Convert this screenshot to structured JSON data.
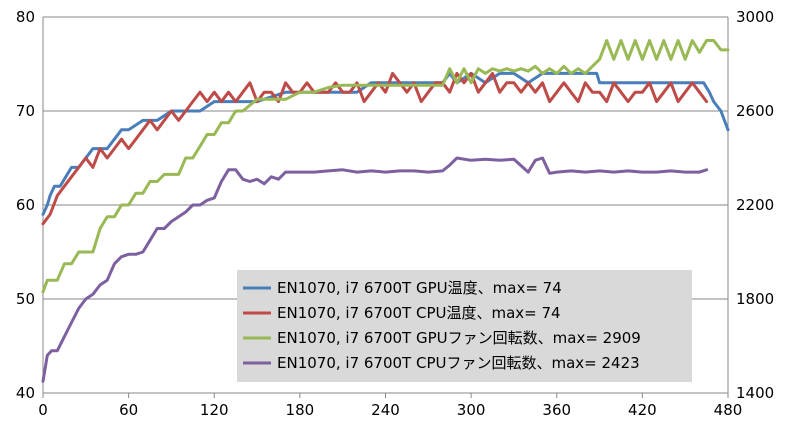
{
  "chart_data": {
    "type": "line",
    "xlim": [
      0,
      480
    ],
    "ylim": [
      40,
      80
    ],
    "y2lim": [
      1400,
      3000
    ],
    "x_ticks": [
      "0",
      "60",
      "120",
      "180",
      "240",
      "300",
      "360",
      "420",
      "480"
    ],
    "y_ticks": [
      "40",
      "50",
      "60",
      "70",
      "80"
    ],
    "y2_ticks": [
      "1400",
      "1800",
      "2200",
      "2600",
      "3000"
    ],
    "grid": true,
    "legend_position": "bottom-center",
    "series": [
      {
        "name": "EN1070, i7 6700T GPU温度、max= 74",
        "color": "#4a7ebb",
        "axis": "left",
        "x": [
          0,
          3,
          5,
          8,
          12,
          16,
          20,
          25,
          30,
          35,
          40,
          45,
          50,
          55,
          60,
          70,
          80,
          90,
          100,
          110,
          120,
          150,
          170,
          200,
          210,
          220,
          230,
          240,
          250,
          260,
          270,
          280,
          285,
          290,
          300,
          310,
          320,
          330,
          340,
          350,
          360,
          370,
          380,
          388,
          390,
          395,
          400,
          420,
          440,
          460,
          463,
          467,
          470,
          475,
          480
        ],
        "y": [
          59,
          60,
          61,
          62,
          62,
          63,
          64,
          64,
          65,
          66,
          66,
          66,
          67,
          68,
          68,
          69,
          69,
          70,
          70,
          70,
          71,
          71,
          72,
          72,
          72,
          72,
          73,
          73,
          73,
          73,
          73,
          73,
          74,
          73,
          74,
          73,
          74,
          74,
          73,
          74,
          74,
          74,
          74,
          74,
          73,
          73,
          73,
          73,
          73,
          73,
          73,
          72,
          71,
          70,
          68
        ]
      },
      {
        "name": "EN1070, i7 6700T CPU温度、max= 74",
        "color": "#be4b48",
        "axis": "left",
        "x": [
          0,
          5,
          10,
          15,
          20,
          25,
          30,
          35,
          40,
          45,
          50,
          55,
          60,
          65,
          70,
          75,
          80,
          85,
          90,
          95,
          100,
          105,
          110,
          115,
          120,
          125,
          130,
          135,
          140,
          145,
          150,
          155,
          160,
          165,
          170,
          175,
          180,
          185,
          190,
          195,
          200,
          205,
          210,
          215,
          220,
          225,
          230,
          235,
          240,
          245,
          250,
          255,
          260,
          265,
          270,
          275,
          280,
          285,
          290,
          295,
          300,
          305,
          310,
          315,
          320,
          325,
          330,
          335,
          340,
          345,
          350,
          355,
          360,
          365,
          370,
          375,
          380,
          385,
          390,
          395,
          400,
          405,
          410,
          415,
          420,
          425,
          430,
          435,
          440,
          445,
          450,
          455,
          460,
          465
        ],
        "y": [
          58,
          59,
          61,
          62,
          63,
          64,
          65,
          64,
          66,
          65,
          66,
          67,
          66,
          67,
          68,
          69,
          68,
          69,
          70,
          69,
          70,
          71,
          72,
          71,
          72,
          71,
          72,
          71,
          72,
          73,
          71,
          72,
          72,
          71,
          73,
          72,
          72,
          73,
          72,
          72,
          72,
          73,
          72,
          72,
          73,
          71,
          72,
          73,
          72,
          74,
          73,
          72,
          73,
          71,
          72,
          73,
          73,
          72,
          74,
          73,
          74,
          72,
          73,
          74,
          72,
          73,
          73,
          72,
          73,
          72,
          73,
          71,
          72,
          73,
          72,
          71,
          73,
          72,
          72,
          71,
          73,
          72,
          71,
          72,
          72,
          73,
          71,
          72,
          73,
          71,
          72,
          73,
          72,
          71
        ]
      },
      {
        "name": "EN1070, i7 6700T GPUファン回転数、max=  2909",
        "color": "#98b954",
        "axis": "right",
        "x": [
          0,
          3,
          6,
          10,
          15,
          20,
          25,
          30,
          35,
          40,
          45,
          50,
          55,
          60,
          65,
          70,
          75,
          80,
          85,
          90,
          95,
          100,
          105,
          110,
          115,
          120,
          125,
          130,
          135,
          140,
          150,
          160,
          170,
          180,
          190,
          200,
          210,
          220,
          230,
          240,
          250,
          260,
          270,
          280,
          285,
          290,
          295,
          300,
          305,
          310,
          315,
          320,
          325,
          330,
          335,
          340,
          345,
          350,
          355,
          360,
          365,
          370,
          375,
          380,
          385,
          390,
          395,
          400,
          405,
          410,
          415,
          420,
          425,
          430,
          435,
          440,
          445,
          450,
          455,
          460,
          465,
          470,
          475,
          480
        ],
        "y": [
          1830,
          1880,
          1880,
          1880,
          1950,
          1950,
          2000,
          2000,
          2000,
          2100,
          2150,
          2150,
          2200,
          2200,
          2250,
          2250,
          2300,
          2300,
          2330,
          2330,
          2330,
          2400,
          2400,
          2450,
          2500,
          2500,
          2550,
          2550,
          2600,
          2600,
          2650,
          2650,
          2650,
          2680,
          2680,
          2700,
          2710,
          2710,
          2710,
          2710,
          2710,
          2710,
          2710,
          2710,
          2780,
          2720,
          2780,
          2720,
          2780,
          2760,
          2780,
          2770,
          2780,
          2770,
          2780,
          2770,
          2790,
          2760,
          2780,
          2760,
          2790,
          2760,
          2780,
          2760,
          2790,
          2820,
          2900,
          2820,
          2900,
          2820,
          2900,
          2820,
          2900,
          2820,
          2900,
          2820,
          2900,
          2820,
          2900,
          2850,
          2900,
          2900,
          2860,
          2860
        ]
      },
      {
        "name": "EN1070, i7 6700T CPUファン回転数、max=  2423",
        "color": "#7d60a0",
        "axis": "right",
        "x": [
          0,
          3,
          6,
          10,
          15,
          20,
          25,
          30,
          35,
          40,
          45,
          50,
          55,
          60,
          65,
          70,
          75,
          80,
          85,
          90,
          95,
          100,
          105,
          110,
          115,
          120,
          125,
          130,
          135,
          140,
          145,
          150,
          155,
          160,
          165,
          170,
          180,
          190,
          200,
          210,
          220,
          230,
          240,
          250,
          260,
          270,
          280,
          285,
          290,
          300,
          310,
          320,
          330,
          340,
          345,
          350,
          355,
          360,
          370,
          380,
          390,
          400,
          410,
          420,
          430,
          440,
          450,
          460,
          465
        ],
        "y": [
          1450,
          1560,
          1580,
          1580,
          1640,
          1700,
          1760,
          1800,
          1820,
          1860,
          1880,
          1950,
          1980,
          1990,
          1990,
          2000,
          2050,
          2100,
          2100,
          2130,
          2150,
          2170,
          2200,
          2200,
          2220,
          2230,
          2300,
          2350,
          2350,
          2310,
          2300,
          2310,
          2290,
          2320,
          2310,
          2340,
          2340,
          2340,
          2345,
          2350,
          2340,
          2345,
          2340,
          2345,
          2345,
          2340,
          2345,
          2370,
          2400,
          2390,
          2395,
          2390,
          2395,
          2340,
          2390,
          2400,
          2335,
          2340,
          2345,
          2340,
          2345,
          2340,
          2345,
          2340,
          2340,
          2345,
          2340,
          2340,
          2350
        ]
      }
    ]
  }
}
